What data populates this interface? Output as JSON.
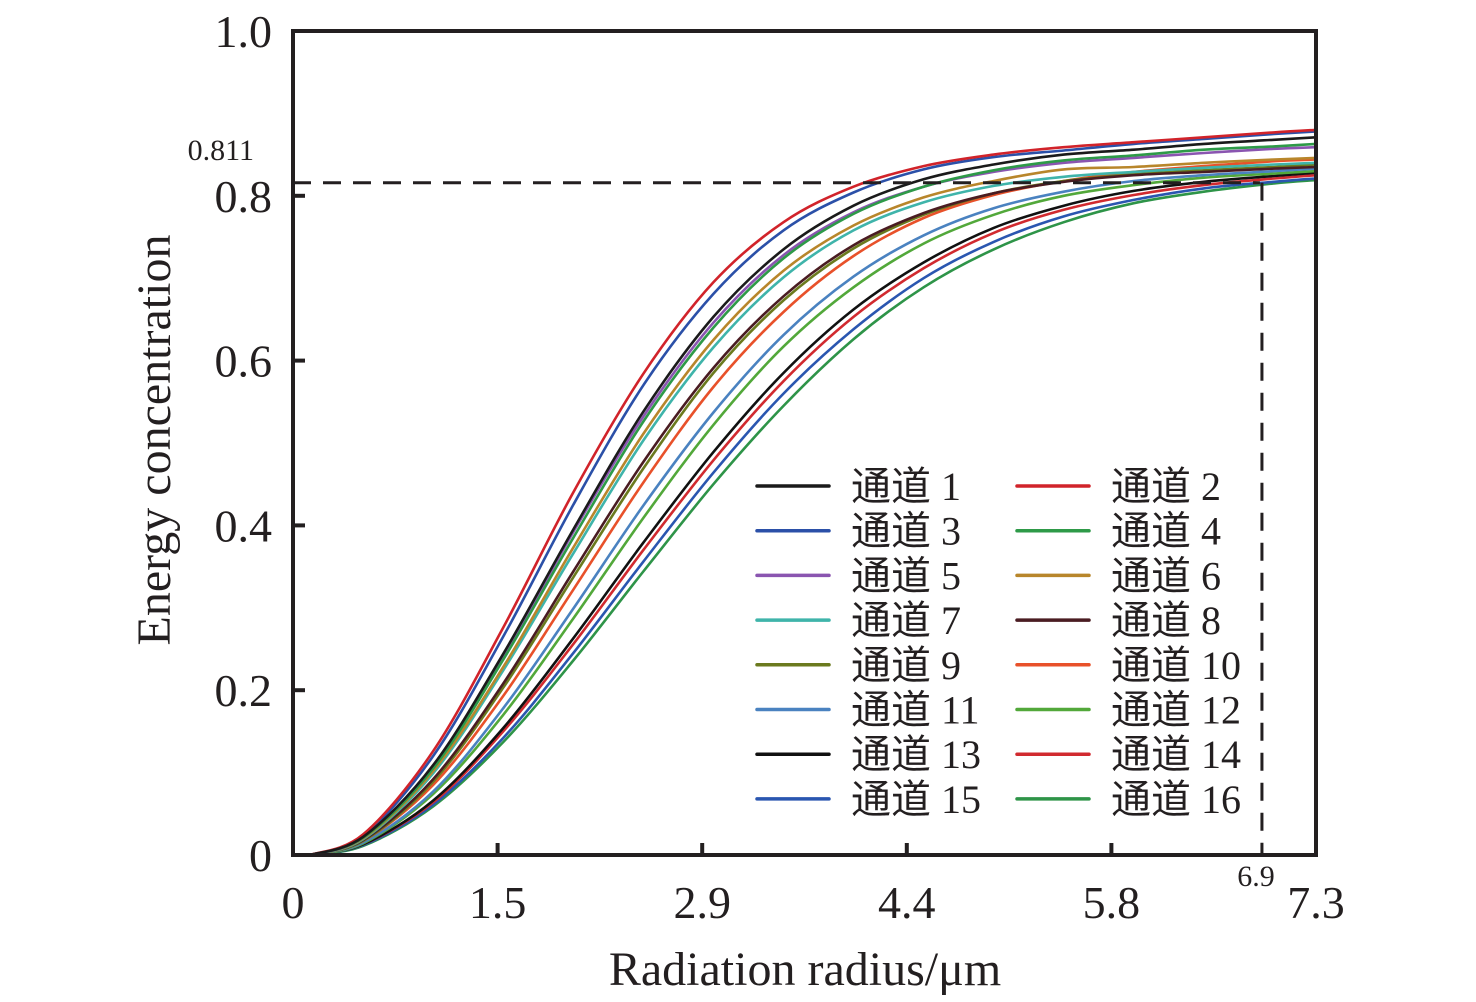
{
  "chart_data": {
    "type": "line",
    "title": "",
    "xlabel": "Radiation radius/μm",
    "ylabel": "Energy concentration",
    "xlim": [
      0,
      7.3
    ],
    "ylim": [
      0,
      1.0
    ],
    "grid": false,
    "legend_position": "lower-right",
    "legend_columns": 2,
    "x_ticks": [
      "0",
      "1.5",
      "2.9",
      "4.4",
      "5.8",
      "7.3"
    ],
    "x_tick_values": [
      0,
      1.46,
      2.92,
      4.38,
      5.84,
      7.3
    ],
    "y_ticks": [
      "0",
      "0.2",
      "0.4",
      "0.6",
      "0.8",
      "1.0"
    ],
    "y_tick_values": [
      0,
      0.2,
      0.4,
      0.6,
      0.8,
      1.0
    ],
    "annotations": [
      {
        "type": "hline-dashed",
        "value": 0.811,
        "label": "0.811",
        "axis": "y"
      },
      {
        "type": "vline-dashed",
        "value": 6.9,
        "label": "6.9",
        "axis": "x"
      }
    ],
    "x": [
      0,
      0.5,
      1.0,
      1.5,
      2.0,
      2.5,
      3.0,
      3.5,
      4.0,
      4.5,
      5.0,
      5.5,
      6.0,
      6.5,
      7.0,
      7.3
    ],
    "series": [
      {
        "name": "通道 1",
        "color": "#1a1a1a",
        "values": [
          0,
          0.022,
          0.109,
          0.244,
          0.395,
          0.538,
          0.653,
          0.735,
          0.788,
          0.82,
          0.838,
          0.85,
          0.856,
          0.863,
          0.868,
          0.871
        ]
      },
      {
        "name": "通道 2",
        "color": "#d1232a",
        "values": [
          0,
          0.025,
          0.126,
          0.276,
          0.44,
          0.584,
          0.695,
          0.768,
          0.811,
          0.836,
          0.85,
          0.859,
          0.865,
          0.871,
          0.877,
          0.88
        ]
      },
      {
        "name": "通道 3",
        "color": "#2b50a8",
        "values": [
          0,
          0.023,
          0.12,
          0.265,
          0.425,
          0.57,
          0.681,
          0.758,
          0.804,
          0.832,
          0.847,
          0.855,
          0.863,
          0.869,
          0.875,
          0.878
        ]
      },
      {
        "name": "通道 4",
        "color": "#2e9a48",
        "values": [
          0,
          0.021,
          0.105,
          0.237,
          0.385,
          0.526,
          0.64,
          0.724,
          0.778,
          0.811,
          0.831,
          0.843,
          0.849,
          0.856,
          0.86,
          0.863
        ]
      },
      {
        "name": "通道 5",
        "color": "#8a55b0",
        "values": [
          0,
          0.021,
          0.108,
          0.241,
          0.392,
          0.532,
          0.646,
          0.728,
          0.78,
          0.811,
          0.829,
          0.84,
          0.846,
          0.852,
          0.857,
          0.859
        ]
      },
      {
        "name": "通道 6",
        "color": "#b8862b",
        "values": [
          0,
          0.02,
          0.102,
          0.228,
          0.373,
          0.511,
          0.625,
          0.709,
          0.764,
          0.798,
          0.818,
          0.832,
          0.835,
          0.84,
          0.844,
          0.846
        ]
      },
      {
        "name": "通道 7",
        "color": "#3fb4aa",
        "values": [
          0,
          0.019,
          0.099,
          0.224,
          0.366,
          0.503,
          0.616,
          0.701,
          0.758,
          0.792,
          0.812,
          0.823,
          0.829,
          0.834,
          0.838,
          0.84
        ]
      },
      {
        "name": "通道 8",
        "color": "#4a1c22",
        "values": [
          0,
          0.018,
          0.092,
          0.208,
          0.344,
          0.477,
          0.591,
          0.678,
          0.74,
          0.779,
          0.803,
          0.817,
          0.825,
          0.829,
          0.833,
          0.835
        ]
      },
      {
        "name": "通道 9",
        "color": "#6b7a1e",
        "values": [
          0,
          0.017,
          0.089,
          0.203,
          0.337,
          0.469,
          0.585,
          0.673,
          0.736,
          0.777,
          0.803,
          0.818,
          0.826,
          0.831,
          0.835,
          0.838
        ]
      },
      {
        "name": "通道 10",
        "color": "#e8512a",
        "values": [
          0,
          0.017,
          0.085,
          0.193,
          0.322,
          0.452,
          0.568,
          0.659,
          0.727,
          0.773,
          0.801,
          0.818,
          0.829,
          0.836,
          0.842,
          0.844
        ]
      },
      {
        "name": "通道 11",
        "color": "#4a82c0",
        "values": [
          0,
          0.015,
          0.077,
          0.178,
          0.299,
          0.424,
          0.537,
          0.631,
          0.702,
          0.752,
          0.785,
          0.805,
          0.818,
          0.825,
          0.83,
          0.833
        ]
      },
      {
        "name": "通道 12",
        "color": "#52a83a",
        "values": [
          0,
          0.014,
          0.074,
          0.17,
          0.287,
          0.409,
          0.522,
          0.617,
          0.689,
          0.742,
          0.777,
          0.8,
          0.813,
          0.822,
          0.827,
          0.83
        ]
      },
      {
        "name": "通道 13",
        "color": "#111111",
        "values": [
          0,
          0.013,
          0.066,
          0.154,
          0.263,
          0.379,
          0.489,
          0.585,
          0.662,
          0.719,
          0.761,
          0.788,
          0.806,
          0.817,
          0.824,
          0.828
        ]
      },
      {
        "name": "通道 14",
        "color": "#d12a2f",
        "values": [
          0,
          0.013,
          0.064,
          0.15,
          0.256,
          0.37,
          0.479,
          0.575,
          0.653,
          0.712,
          0.755,
          0.783,
          0.801,
          0.813,
          0.821,
          0.825
        ]
      },
      {
        "name": "通道 15",
        "color": "#2a56b0",
        "values": [
          0,
          0.012,
          0.061,
          0.142,
          0.245,
          0.356,
          0.464,
          0.56,
          0.638,
          0.7,
          0.744,
          0.775,
          0.795,
          0.809,
          0.817,
          0.821
        ]
      },
      {
        "name": "通道 16",
        "color": "#2e9448",
        "values": [
          0,
          0.011,
          0.059,
          0.137,
          0.236,
          0.344,
          0.45,
          0.545,
          0.626,
          0.689,
          0.735,
          0.768,
          0.791,
          0.805,
          0.815,
          0.819
        ]
      }
    ],
    "legend_order": [
      "通道 1",
      "通道 2",
      "通道 3",
      "通道 4",
      "通道 5",
      "通道 6",
      "通道 7",
      "通道 8",
      "通道 9",
      "通道 10",
      "通道 11",
      "通道 12",
      "通道 13",
      "通道 14",
      "通道 15",
      "通道 16"
    ]
  }
}
